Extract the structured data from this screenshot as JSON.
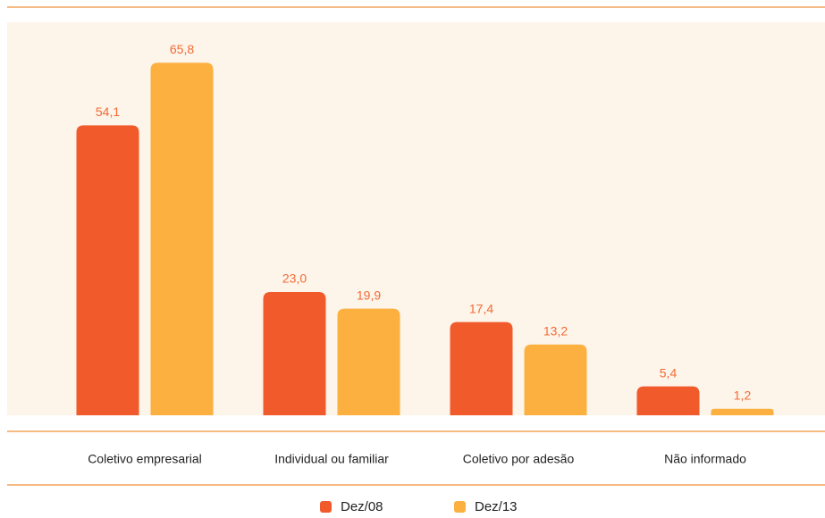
{
  "chart_data": {
    "type": "bar",
    "categories": [
      "Coletivo empresarial",
      "Individual ou familiar",
      "Coletivo por adesão",
      "Não informado"
    ],
    "series": [
      {
        "name": "Dez/08",
        "color": "#f15a2b",
        "values": [
          54.1,
          23.0,
          17.4,
          5.4
        ],
        "value_labels": [
          "54,1",
          "23,0",
          "17,4",
          "5,4"
        ]
      },
      {
        "name": "Dez/13",
        "color": "#fbb040",
        "values": [
          65.8,
          19.9,
          13.2,
          1.2
        ],
        "value_labels": [
          "65,8",
          "19,9",
          "13,2",
          "1,2"
        ]
      }
    ]
  }
}
